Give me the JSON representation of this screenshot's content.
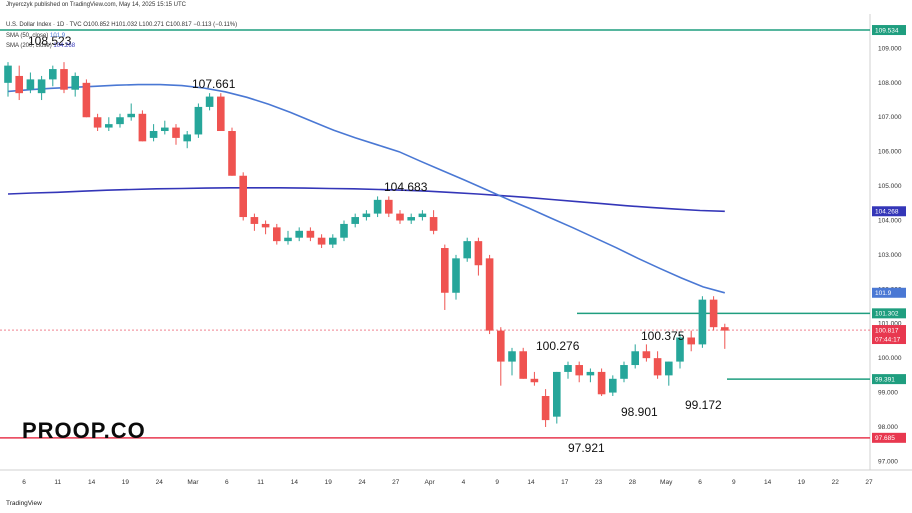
{
  "header": {
    "published": "Jhyerczyk published on TradingView.com, May 14, 2025 15:15 UTC",
    "symbol_line": "U.S. Dollar Index · 1D · TVC O100.852 H101.032 L100.271 C100.817 −0.113 (−0.11%)",
    "sma50_label": "SMA (50, close)",
    "sma50_value": "101.9",
    "sma200_label": "SMA (200, close)",
    "sma200_value": "104.268"
  },
  "brand": {
    "logo_text": "PROOP.CO",
    "footer": "TradingView"
  },
  "colors": {
    "bull": "#26a69a",
    "bear": "#ef5350",
    "sma50": "#4a78d4",
    "sma200": "#3436b8",
    "green_line": "#1f9e7f",
    "red_line": "#e8384f"
  },
  "chart_data": {
    "type": "candlestick",
    "ylim": [
      96.75,
      110.0
    ],
    "y_ticks": [
      97.0,
      98.0,
      99.0,
      100.0,
      101.0,
      102.0,
      103.0,
      104.0,
      105.0,
      106.0,
      107.0,
      108.0,
      109.0
    ],
    "x_ticks": [
      "6",
      "11",
      "14",
      "19",
      "24",
      "Mar",
      "6",
      "11",
      "14",
      "19",
      "24",
      "27",
      "Apr",
      "4",
      "9",
      "14",
      "17",
      "23",
      "28",
      "May",
      "6",
      "9",
      "14",
      "19",
      "22",
      "27"
    ],
    "candles": [
      {
        "o": 108.0,
        "h": 108.6,
        "l": 107.6,
        "c": 108.5
      },
      {
        "o": 108.2,
        "h": 108.5,
        "l": 107.5,
        "c": 107.7
      },
      {
        "o": 107.8,
        "h": 108.3,
        "l": 107.7,
        "c": 108.1
      },
      {
        "o": 107.7,
        "h": 108.2,
        "l": 107.5,
        "c": 108.1
      },
      {
        "o": 108.1,
        "h": 108.5,
        "l": 107.9,
        "c": 108.4
      },
      {
        "o": 108.4,
        "h": 108.6,
        "l": 107.7,
        "c": 107.8
      },
      {
        "o": 107.8,
        "h": 108.3,
        "l": 107.6,
        "c": 108.2
      },
      {
        "o": 108.0,
        "h": 108.1,
        "l": 107.0,
        "c": 107.0
      },
      {
        "o": 107.0,
        "h": 107.1,
        "l": 106.6,
        "c": 106.7
      },
      {
        "o": 106.7,
        "h": 107.0,
        "l": 106.6,
        "c": 106.8
      },
      {
        "o": 106.8,
        "h": 107.1,
        "l": 106.7,
        "c": 107.0
      },
      {
        "o": 107.0,
        "h": 107.4,
        "l": 106.9,
        "c": 107.1
      },
      {
        "o": 107.1,
        "h": 107.2,
        "l": 106.3,
        "c": 106.3
      },
      {
        "o": 106.4,
        "h": 106.8,
        "l": 106.3,
        "c": 106.6
      },
      {
        "o": 106.6,
        "h": 106.9,
        "l": 106.5,
        "c": 106.7
      },
      {
        "o": 106.7,
        "h": 106.8,
        "l": 106.2,
        "c": 106.4
      },
      {
        "o": 106.3,
        "h": 106.6,
        "l": 106.1,
        "c": 106.5
      },
      {
        "o": 106.5,
        "h": 107.4,
        "l": 106.4,
        "c": 107.3
      },
      {
        "o": 107.3,
        "h": 107.7,
        "l": 107.2,
        "c": 107.6
      },
      {
        "o": 107.6,
        "h": 107.7,
        "l": 106.6,
        "c": 106.6
      },
      {
        "o": 106.6,
        "h": 106.7,
        "l": 105.3,
        "c": 105.3
      },
      {
        "o": 105.3,
        "h": 105.4,
        "l": 104.0,
        "c": 104.1
      },
      {
        "o": 104.1,
        "h": 104.2,
        "l": 103.7,
        "c": 103.9
      },
      {
        "o": 103.9,
        "h": 104.0,
        "l": 103.6,
        "c": 103.8
      },
      {
        "o": 103.8,
        "h": 103.9,
        "l": 103.3,
        "c": 103.4
      },
      {
        "o": 103.4,
        "h": 103.7,
        "l": 103.3,
        "c": 103.5
      },
      {
        "o": 103.5,
        "h": 103.8,
        "l": 103.4,
        "c": 103.7
      },
      {
        "o": 103.7,
        "h": 103.8,
        "l": 103.4,
        "c": 103.5
      },
      {
        "o": 103.5,
        "h": 103.6,
        "l": 103.2,
        "c": 103.3
      },
      {
        "o": 103.3,
        "h": 103.6,
        "l": 103.2,
        "c": 103.5
      },
      {
        "o": 103.5,
        "h": 104.0,
        "l": 103.4,
        "c": 103.9
      },
      {
        "o": 103.9,
        "h": 104.2,
        "l": 103.8,
        "c": 104.1
      },
      {
        "o": 104.1,
        "h": 104.3,
        "l": 104.0,
        "c": 104.2
      },
      {
        "o": 104.2,
        "h": 104.7,
        "l": 104.1,
        "c": 104.6
      },
      {
        "o": 104.6,
        "h": 104.7,
        "l": 104.1,
        "c": 104.2
      },
      {
        "o": 104.2,
        "h": 104.3,
        "l": 103.9,
        "c": 104.0
      },
      {
        "o": 104.0,
        "h": 104.2,
        "l": 103.9,
        "c": 104.1
      },
      {
        "o": 104.1,
        "h": 104.3,
        "l": 104.0,
        "c": 104.2
      },
      {
        "o": 104.1,
        "h": 104.3,
        "l": 103.6,
        "c": 103.7
      },
      {
        "o": 103.2,
        "h": 103.3,
        "l": 101.4,
        "c": 101.9
      },
      {
        "o": 101.9,
        "h": 103.0,
        "l": 101.7,
        "c": 102.9
      },
      {
        "o": 102.9,
        "h": 103.5,
        "l": 102.8,
        "c": 103.4
      },
      {
        "o": 103.4,
        "h": 103.5,
        "l": 102.4,
        "c": 102.7
      },
      {
        "o": 102.9,
        "h": 103.0,
        "l": 100.7,
        "c": 100.8
      },
      {
        "o": 100.8,
        "h": 100.9,
        "l": 99.2,
        "c": 99.9
      },
      {
        "o": 99.9,
        "h": 100.3,
        "l": 99.5,
        "c": 100.2
      },
      {
        "o": 100.2,
        "h": 100.3,
        "l": 99.4,
        "c": 99.4
      },
      {
        "o": 99.4,
        "h": 99.6,
        "l": 99.2,
        "c": 99.3
      },
      {
        "o": 98.9,
        "h": 99.1,
        "l": 98.0,
        "c": 98.2
      },
      {
        "o": 98.3,
        "h": 99.6,
        "l": 98.1,
        "c": 99.6
      },
      {
        "o": 99.6,
        "h": 99.9,
        "l": 99.4,
        "c": 99.8
      },
      {
        "o": 99.8,
        "h": 99.9,
        "l": 99.3,
        "c": 99.5
      },
      {
        "o": 99.5,
        "h": 99.7,
        "l": 99.3,
        "c": 99.6
      },
      {
        "o": 99.6,
        "h": 99.7,
        "l": 98.9,
        "c": 98.95
      },
      {
        "o": 99.0,
        "h": 99.5,
        "l": 98.9,
        "c": 99.4
      },
      {
        "o": 99.4,
        "h": 99.9,
        "l": 99.3,
        "c": 99.8
      },
      {
        "o": 99.8,
        "h": 100.4,
        "l": 99.7,
        "c": 100.2
      },
      {
        "o": 100.2,
        "h": 100.4,
        "l": 99.9,
        "c": 100.0
      },
      {
        "o": 100.0,
        "h": 100.2,
        "l": 99.4,
        "c": 99.5
      },
      {
        "o": 99.5,
        "h": 99.9,
        "l": 99.2,
        "c": 99.9
      },
      {
        "o": 99.9,
        "h": 100.7,
        "l": 99.7,
        "c": 100.6
      },
      {
        "o": 100.6,
        "h": 100.8,
        "l": 100.2,
        "c": 100.4
      },
      {
        "o": 100.4,
        "h": 101.8,
        "l": 100.3,
        "c": 101.7
      },
      {
        "o": 101.7,
        "h": 101.8,
        "l": 100.8,
        "c": 100.9
      },
      {
        "o": 100.9,
        "h": 101.0,
        "l": 100.27,
        "c": 100.8
      }
    ],
    "sma50": [
      107.75,
      107.8,
      107.84,
      107.87,
      107.9,
      107.93,
      107.95,
      107.95,
      107.92,
      107.85,
      107.74,
      107.58,
      107.38,
      107.14,
      106.88,
      106.62,
      106.4,
      106.2,
      106.0,
      105.72,
      105.45,
      105.18,
      104.9,
      104.62,
      104.35,
      104.07,
      103.79,
      103.5,
      103.21,
      102.9,
      102.61,
      102.33,
      102.07,
      101.9
    ],
    "sma50_start_index": 0,
    "sma200": [
      104.77,
      104.8,
      104.82,
      104.85,
      104.88,
      104.9,
      104.92,
      104.93,
      104.94,
      104.95,
      104.95,
      104.95,
      104.94,
      104.93,
      104.92,
      104.9,
      104.88,
      104.85,
      104.81,
      104.77,
      104.72,
      104.67,
      104.61,
      104.55,
      104.49,
      104.43,
      104.38,
      104.33,
      104.29,
      104.268
    ],
    "price_levels": [
      {
        "label": "109.534",
        "value": 109.534,
        "color": "#1f9e7f"
      },
      {
        "label": "104.268",
        "value": 104.268,
        "color": "#3436b8"
      },
      {
        "label": "101.9",
        "value": 101.9,
        "color": "#4a78d4"
      },
      {
        "label": "101.302",
        "value": 101.302,
        "color": "#1f9e7f"
      },
      {
        "label": "100.817",
        "value": 100.817,
        "color": "#e8384f"
      },
      {
        "label": "07:44:17",
        "value": 100.6,
        "color": "#e8384f"
      },
      {
        "label": "99.391",
        "value": 99.391,
        "color": "#1f9e7f"
      },
      {
        "label": "97.685",
        "value": 97.685,
        "color": "#e8384f"
      }
    ],
    "annotations": [
      "108.523",
      "107.661",
      "104.683",
      "100.276",
      "100.375",
      "98.901",
      "99.172",
      "97.921"
    ]
  }
}
